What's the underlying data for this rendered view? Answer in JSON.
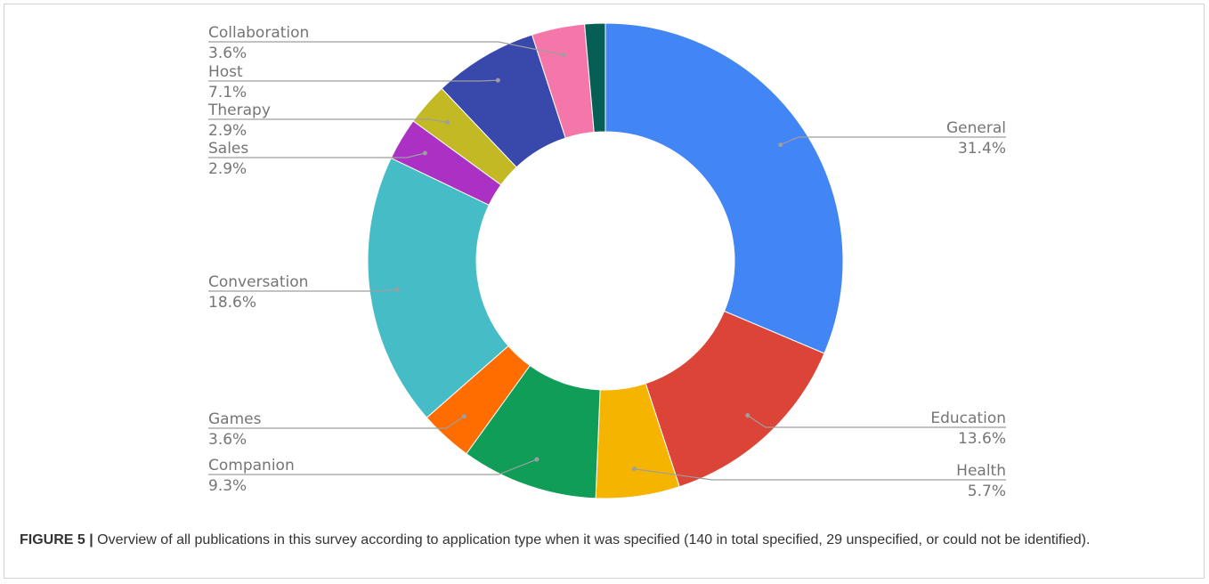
{
  "chart_data": {
    "type": "pie",
    "title": "",
    "slices": [
      {
        "label": "General",
        "pct_text": "31.4%",
        "value": 31.4,
        "color": "#4285F4"
      },
      {
        "label": "Education",
        "pct_text": "13.6%",
        "value": 13.6,
        "color": "#DB4437"
      },
      {
        "label": "Health",
        "pct_text": "5.7%",
        "value": 5.7,
        "color": "#F4B400"
      },
      {
        "label": "Companion",
        "pct_text": "9.3%",
        "value": 9.3,
        "color": "#0F9D58"
      },
      {
        "label": "Games",
        "pct_text": "3.6%",
        "value": 3.6,
        "color": "#FF6D00"
      },
      {
        "label": "Conversation",
        "pct_text": "18.6%",
        "value": 18.6,
        "color": "#46BDC6"
      },
      {
        "label": "Sales",
        "pct_text": "2.9%",
        "value": 2.9,
        "color": "#AB30C4"
      },
      {
        "label": "Therapy",
        "pct_text": "2.9%",
        "value": 2.9,
        "color": "#C2B924"
      },
      {
        "label": "Host",
        "pct_text": "7.1%",
        "value": 7.1,
        "color": "#3949AB"
      },
      {
        "label": "Collaboration",
        "pct_text": "3.6%",
        "value": 3.6,
        "color": "#F576A9"
      },
      {
        "label": "",
        "pct_text": "",
        "value": 1.4,
        "color": "#075E54"
      }
    ],
    "legend": "none"
  },
  "caption": {
    "figure_label": "FIGURE 5 |",
    "text": " Overview of all publications in this survey according to application type when it was specified (140 in total specified, 29 unspecified, or could not be identified)."
  }
}
